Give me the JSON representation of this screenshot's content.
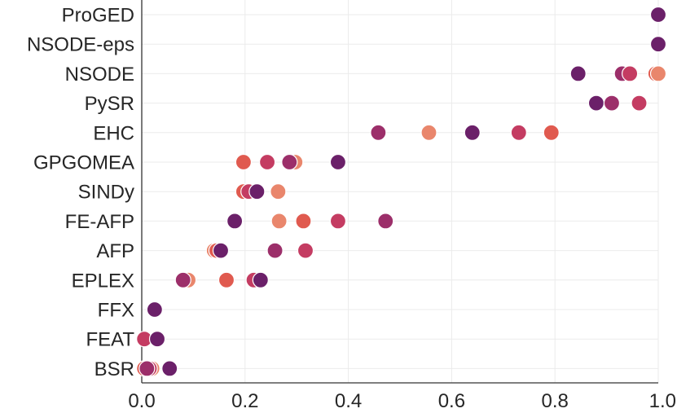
{
  "chart_data": {
    "type": "scatter",
    "title": "",
    "xlabel": "",
    "ylabel": "",
    "xlim": [
      0.0,
      1.0
    ],
    "x_ticks": [
      "0.0",
      "0.2",
      "0.4",
      "0.6",
      "0.8",
      "1.0"
    ],
    "categories": [
      "ProGED",
      "NSODE-eps",
      "NSODE",
      "PySR",
      "EHC",
      "GPGOMEA",
      "SINDy",
      "FE-AFP",
      "AFP",
      "EPLEX",
      "FFX",
      "FEAT",
      "BSR"
    ],
    "grid": true,
    "legend": "none",
    "palette": [
      "#e9866c",
      "#e05a4f",
      "#c43c62",
      "#9c2f6a",
      "#6b2069"
    ],
    "points": [
      {
        "category": "ProGED",
        "x": 1.0,
        "color": "#6b2069"
      },
      {
        "category": "NSODE-eps",
        "x": 1.0,
        "color": "#6b2069"
      },
      {
        "category": "NSODE",
        "x": 0.845,
        "color": "#6b2069"
      },
      {
        "category": "NSODE",
        "x": 0.93,
        "color": "#9c2f6a"
      },
      {
        "category": "NSODE",
        "x": 0.945,
        "color": "#c43c62"
      },
      {
        "category": "NSODE",
        "x": 0.995,
        "color": "#e05a4f"
      },
      {
        "category": "NSODE",
        "x": 1.0,
        "color": "#e9866c"
      },
      {
        "category": "PySR",
        "x": 0.88,
        "color": "#6b2069"
      },
      {
        "category": "PySR",
        "x": 0.91,
        "color": "#9c2f6a"
      },
      {
        "category": "PySR",
        "x": 0.963,
        "color": "#c43c62"
      },
      {
        "category": "EHC",
        "x": 0.458,
        "color": "#9c2f6a"
      },
      {
        "category": "EHC",
        "x": 0.556,
        "color": "#e9866c"
      },
      {
        "category": "EHC",
        "x": 0.64,
        "color": "#6b2069"
      },
      {
        "category": "EHC",
        "x": 0.73,
        "color": "#c43c62"
      },
      {
        "category": "EHC",
        "x": 0.793,
        "color": "#e05a4f"
      },
      {
        "category": "GPGOMEA",
        "x": 0.197,
        "color": "#e05a4f"
      },
      {
        "category": "GPGOMEA",
        "x": 0.243,
        "color": "#c43c62"
      },
      {
        "category": "GPGOMEA",
        "x": 0.297,
        "color": "#e9866c"
      },
      {
        "category": "GPGOMEA",
        "x": 0.286,
        "color": "#9c2f6a"
      },
      {
        "category": "GPGOMEA",
        "x": 0.38,
        "color": "#6b2069"
      },
      {
        "category": "SINDy",
        "x": 0.197,
        "color": "#e05a4f"
      },
      {
        "category": "SINDy",
        "x": 0.207,
        "color": "#c43c62"
      },
      {
        "category": "SINDy",
        "x": 0.264,
        "color": "#e9866c"
      },
      {
        "category": "SINDy",
        "x": 0.223,
        "color": "#6b2069"
      },
      {
        "category": "FE-AFP",
        "x": 0.18,
        "color": "#6b2069"
      },
      {
        "category": "FE-AFP",
        "x": 0.266,
        "color": "#e9866c"
      },
      {
        "category": "FE-AFP",
        "x": 0.313,
        "color": "#e05a4f"
      },
      {
        "category": "FE-AFP",
        "x": 0.38,
        "color": "#c43c62"
      },
      {
        "category": "FE-AFP",
        "x": 0.472,
        "color": "#9c2f6a"
      },
      {
        "category": "AFP",
        "x": 0.14,
        "color": "#e9866c"
      },
      {
        "category": "AFP",
        "x": 0.145,
        "color": "#e05a4f"
      },
      {
        "category": "AFP",
        "x": 0.153,
        "color": "#6b2069"
      },
      {
        "category": "AFP",
        "x": 0.258,
        "color": "#9c2f6a"
      },
      {
        "category": "AFP",
        "x": 0.317,
        "color": "#c43c62"
      },
      {
        "category": "EPLEX",
        "x": 0.09,
        "color": "#e9866c"
      },
      {
        "category": "EPLEX",
        "x": 0.08,
        "color": "#9c2f6a"
      },
      {
        "category": "EPLEX",
        "x": 0.164,
        "color": "#e05a4f"
      },
      {
        "category": "EPLEX",
        "x": 0.217,
        "color": "#c43c62"
      },
      {
        "category": "EPLEX",
        "x": 0.23,
        "color": "#6b2069"
      },
      {
        "category": "FFX",
        "x": 0.025,
        "color": "#6b2069"
      },
      {
        "category": "FEAT",
        "x": 0.005,
        "color": "#c43c62"
      },
      {
        "category": "FEAT",
        "x": 0.03,
        "color": "#6b2069"
      },
      {
        "category": "BSR",
        "x": 0.005,
        "color": "#e05a4f"
      },
      {
        "category": "BSR",
        "x": 0.02,
        "color": "#e9866c"
      },
      {
        "category": "BSR",
        "x": 0.015,
        "color": "#c43c62"
      },
      {
        "category": "BSR",
        "x": 0.01,
        "color": "#9c2f6a"
      },
      {
        "category": "BSR",
        "x": 0.054,
        "color": "#6b2069"
      }
    ]
  }
}
